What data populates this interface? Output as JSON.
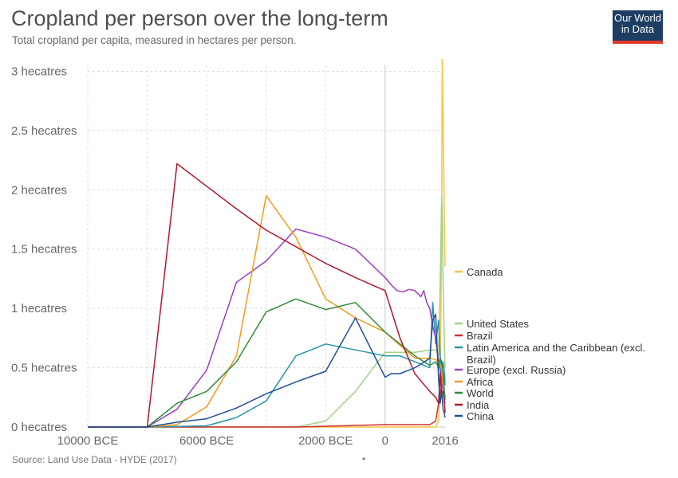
{
  "header": {
    "title": "Cropland per person over the long-term",
    "subtitle": "Total cropland per capita, measured in hectares per person.",
    "logo_line1": "Our World",
    "logo_line2": "in Data"
  },
  "footer": {
    "source": "Source: Land Use Data - HYDE (2017)",
    "note": "•"
  },
  "chart_data": {
    "type": "line",
    "title": "Cropland per person over the long-term",
    "subtitle": "Total cropland per capita, measured in hectares per person.",
    "xlabel": "",
    "ylabel": "",
    "x_ticks": [
      {
        "value": -10000,
        "label": "10000 BCE"
      },
      {
        "value": -6000,
        "label": "6000 BCE"
      },
      {
        "value": -2000,
        "label": "2000 BCE"
      },
      {
        "value": 0,
        "label": "0"
      },
      {
        "value": 2016,
        "label": "2016"
      }
    ],
    "y_ticks": [
      {
        "value": 0,
        "label": "0 hecatres"
      },
      {
        "value": 0.5,
        "label": "0.5 hecatres"
      },
      {
        "value": 1,
        "label": "1 hecatres"
      },
      {
        "value": 1.5,
        "label": "1.5 hecatres"
      },
      {
        "value": 2,
        "label": "2 hecatres"
      },
      {
        "value": 2.5,
        "label": "2.5 hecatres"
      },
      {
        "value": 3,
        "label": "3 hecatres"
      }
    ],
    "xlim": [
      -10000,
      2016
    ],
    "ylim": [
      0,
      3.05
    ],
    "grid": "dashed",
    "legend_position": "right",
    "series": [
      {
        "name": "Canada",
        "color": "#f5c242",
        "x": [
          -10000,
          -3000,
          0,
          1000,
          1700,
          1800,
          1850,
          1900,
          1920,
          1950,
          1980,
          2000,
          2016
        ],
        "y": [
          0,
          0,
          0,
          0,
          0,
          0.05,
          0.4,
          1.6,
          3.1,
          2.6,
          2.0,
          1.6,
          1.35
        ]
      },
      {
        "name": "United States",
        "color": "#a3d08a",
        "x": [
          -10000,
          -3000,
          -2000,
          -1000,
          0,
          1000,
          1500,
          1700,
          1800,
          1850,
          1900,
          1920,
          1950,
          1980,
          2000,
          2016
        ],
        "y": [
          0,
          0,
          0.05,
          0.3,
          0.63,
          0.63,
          0.65,
          0.65,
          0.6,
          1.2,
          1.95,
          1.85,
          1.2,
          0.85,
          0.65,
          0.5
        ]
      },
      {
        "name": "Brazil",
        "color": "#d32f2f",
        "x": [
          -10000,
          -3000,
          0,
          1000,
          1500,
          1700,
          1800,
          1900,
          1950,
          2000,
          2016
        ],
        "y": [
          0,
          0,
          0.02,
          0.02,
          0.02,
          0.05,
          0.2,
          0.35,
          0.45,
          0.38,
          0.4
        ]
      },
      {
        "name": "Latin America and the Caribbean (excl. Brazil)",
        "color": "#2596a5",
        "x": [
          -10000,
          -8000,
          -6000,
          -5000,
          -4000,
          -3000,
          -2000,
          -1000,
          0,
          500,
          1000,
          1500,
          1600,
          1700,
          1800,
          1850,
          1900,
          1950,
          2000,
          2016
        ],
        "y": [
          0,
          0,
          0.01,
          0.08,
          0.22,
          0.6,
          0.7,
          0.65,
          0.6,
          0.6,
          0.55,
          0.5,
          1.05,
          0.7,
          0.9,
          0.6,
          0.45,
          0.55,
          0.45,
          0.35
        ]
      },
      {
        "name": "Europe (excl. Russia)",
        "color": "#9b3fc1",
        "x": [
          -10000,
          -8000,
          -7000,
          -6000,
          -5000,
          -4000,
          -3000,
          -2000,
          -1000,
          0,
          200,
          400,
          600,
          800,
          1000,
          1200,
          1300,
          1400,
          1500,
          1600,
          1700,
          1800,
          1900,
          1950,
          2000,
          2016
        ],
        "y": [
          0,
          0,
          0.15,
          0.48,
          1.22,
          1.4,
          1.67,
          1.6,
          1.5,
          1.26,
          1.2,
          1.15,
          1.14,
          1.16,
          1.15,
          1.1,
          1.15,
          1.05,
          1.0,
          0.85,
          0.75,
          0.55,
          0.4,
          0.3,
          0.22,
          0.2
        ]
      },
      {
        "name": "Africa",
        "color": "#f39c19",
        "x": [
          -10000,
          -8000,
          -7000,
          -6000,
          -5000,
          -4000,
          -3000,
          -2000,
          -1000,
          0,
          1000,
          1500,
          1700,
          1800,
          1900,
          1950,
          2000,
          2016
        ],
        "y": [
          0,
          0,
          0.02,
          0.17,
          0.6,
          1.95,
          1.6,
          1.08,
          0.92,
          0.8,
          0.58,
          0.58,
          0.57,
          0.55,
          0.5,
          0.35,
          0.28,
          0.25
        ]
      },
      {
        "name": "World",
        "color": "#2f8c38",
        "x": [
          -10000,
          -8000,
          -7000,
          -6000,
          -5000,
          -4000,
          -3000,
          -2000,
          -1000,
          0,
          1000,
          1500,
          1700,
          1800,
          1850,
          1900,
          1950,
          2000,
          2016
        ],
        "y": [
          0,
          0,
          0.2,
          0.3,
          0.55,
          0.97,
          1.08,
          0.99,
          1.05,
          0.8,
          0.6,
          0.52,
          0.55,
          0.5,
          0.58,
          0.55,
          0.45,
          0.27,
          0.23
        ]
      },
      {
        "name": "India",
        "color": "#b0182d",
        "x": [
          -10000,
          -8000,
          -7000,
          -6000,
          -5000,
          -4000,
          -3000,
          -2000,
          -1000,
          0,
          500,
          1000,
          1500,
          1700,
          1800,
          1850,
          1900,
          1950,
          2000,
          2016
        ],
        "y": [
          0,
          0,
          2.22,
          2.03,
          1.84,
          1.66,
          1.52,
          1.38,
          1.26,
          1.15,
          0.75,
          0.45,
          0.3,
          0.25,
          0.2,
          0.45,
          0.28,
          0.3,
          0.2,
          0.12
        ]
      },
      {
        "name": "China",
        "color": "#1f4e9c",
        "x": [
          -10000,
          -8000,
          -7000,
          -6000,
          -5000,
          -4000,
          -3000,
          -2000,
          -1000,
          0,
          200,
          500,
          1000,
          1200,
          1500,
          1600,
          1700,
          1800,
          1850,
          1900,
          1950,
          2000,
          2016
        ],
        "y": [
          0,
          0,
          0.04,
          0.07,
          0.16,
          0.28,
          0.38,
          0.47,
          0.92,
          0.42,
          0.45,
          0.45,
          0.5,
          0.53,
          0.58,
          0.9,
          0.95,
          0.4,
          0.2,
          0.3,
          0.15,
          0.1,
          0.08
        ]
      }
    ],
    "legend_lines": [
      {
        "series": "Canada",
        "lines": [
          "Canada"
        ]
      },
      {
        "series": "United States",
        "lines": [
          "United States"
        ]
      },
      {
        "series": "Brazil",
        "lines": [
          "Brazil"
        ]
      },
      {
        "series": "Latin America and the Caribbean (excl. Brazil)",
        "lines": [
          "Latin America and the Caribbean (excl.",
          "Brazil)"
        ]
      },
      {
        "series": "Europe (excl. Russia)",
        "lines": [
          "Europe (excl. Russia)"
        ]
      },
      {
        "series": "Africa",
        "lines": [
          "Africa"
        ]
      },
      {
        "series": "World",
        "lines": [
          "World"
        ]
      },
      {
        "series": "India",
        "lines": [
          "India"
        ]
      },
      {
        "series": "China",
        "lines": [
          "China"
        ]
      }
    ]
  }
}
